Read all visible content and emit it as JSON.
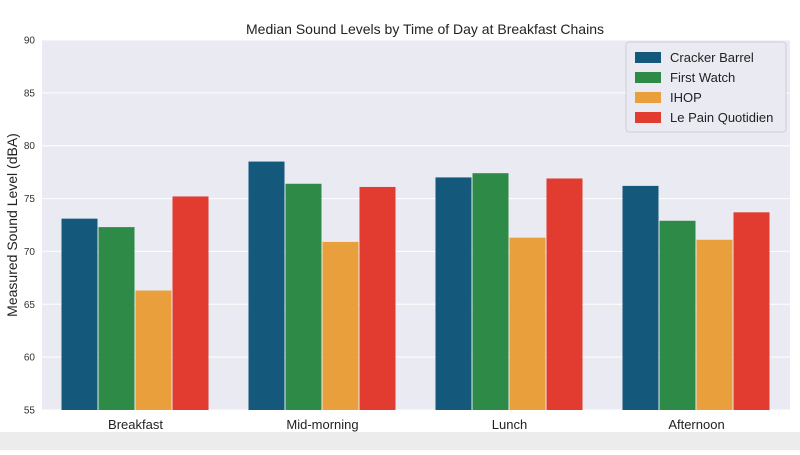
{
  "chart_data": {
    "type": "bar",
    "title": "Median Sound Levels by Time of Day at Breakfast Chains",
    "xlabel": "",
    "ylabel": "Measured Sound Level (dBA)",
    "ylim": [
      55,
      90
    ],
    "yticks": [
      55,
      60,
      65,
      70,
      75,
      80,
      85,
      90
    ],
    "grid": true,
    "legend_position": "top-right",
    "categories": [
      "Breakfast",
      "Mid-morning",
      "Lunch",
      "Afternoon"
    ],
    "series": [
      {
        "name": "Cracker Barrel",
        "color": "#14587c",
        "values": [
          73.1,
          78.5,
          77.0,
          76.2
        ]
      },
      {
        "name": "First Watch",
        "color": "#2e8b47",
        "values": [
          72.3,
          76.4,
          77.4,
          72.9
        ]
      },
      {
        "name": "IHOP",
        "color": "#e89f3c",
        "values": [
          66.3,
          70.9,
          71.3,
          71.1
        ]
      },
      {
        "name": "Le Pain Quotidien",
        "color": "#e23b2f",
        "values": [
          75.2,
          76.1,
          76.9,
          73.7
        ]
      }
    ]
  },
  "colors": {
    "plot_background": "#eaeaf2",
    "grid": "#ffffff"
  }
}
